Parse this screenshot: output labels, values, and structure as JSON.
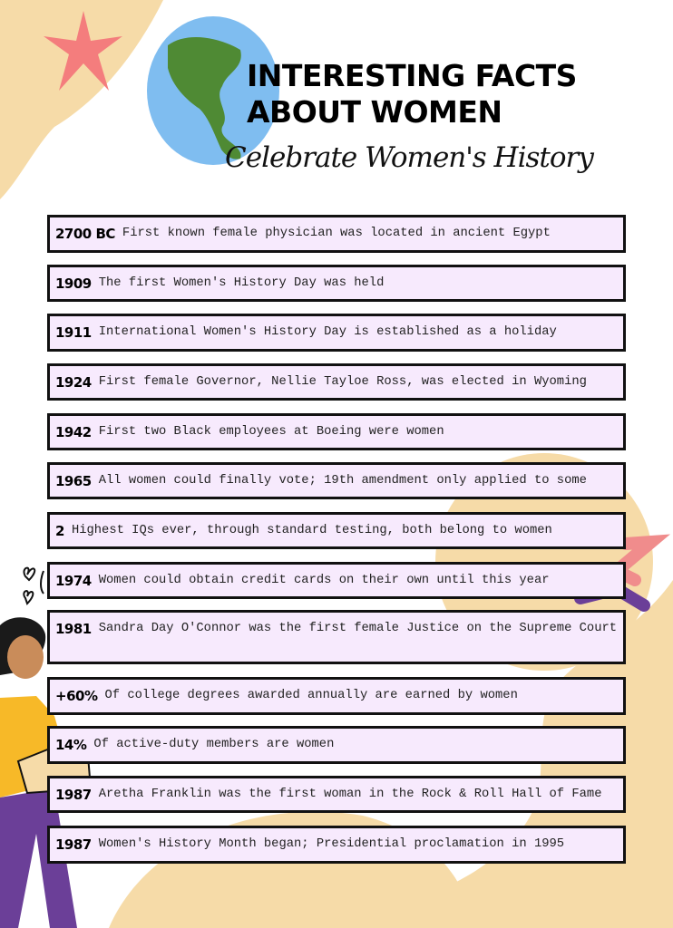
{
  "header": {
    "title_line1": "INTERESTING FACTS",
    "title_line2": "ABOUT WOMEN",
    "subtitle": "Celebrate Women's History"
  },
  "colors": {
    "beige": "#f6dba8",
    "row_bg": "#f7eafd",
    "globe_water": "#7fbdf0",
    "globe_land": "#4f8a34",
    "star": "#f47d7d",
    "accent_purple": "#6b3f98",
    "accent_pink": "#f08c8c"
  },
  "facts": [
    {
      "year": "2700 BC",
      "text": "First known female physician was located in ancient Egypt"
    },
    {
      "year": "1909",
      "text": "The first Women's History Day was held"
    },
    {
      "year": "1911",
      "text": "International Women's History Day is established as a holiday"
    },
    {
      "year": "1924",
      "text": "First female Governor, Nellie Tayloe Ross, was elected in Wyoming"
    },
    {
      "year": "1942",
      "text": "First two Black employees at Boeing were women"
    },
    {
      "year": "1965",
      "text": "All women could finally vote; 19th amendment only applied to some"
    },
    {
      "year": "2",
      "text": "Highest IQs ever, through standard testing, both belong to women"
    },
    {
      "year": "1974",
      "text": "Women could obtain credit cards on their own until this year"
    },
    {
      "year": "1981",
      "text": "Sandra Day O'Connor was the first female Justice on the Supreme Court"
    },
    {
      "year": "+60%",
      "text": "Of college degrees awarded annually are earned by women"
    },
    {
      "year": "14%",
      "text": "Of active-duty members are women"
    },
    {
      "year": "1987",
      "text": "Aretha Franklin was the first woman in the Rock & Roll Hall of Fame"
    },
    {
      "year": "1987",
      "text": "Women's History Month began; Presidential proclamation in 1995"
    }
  ]
}
